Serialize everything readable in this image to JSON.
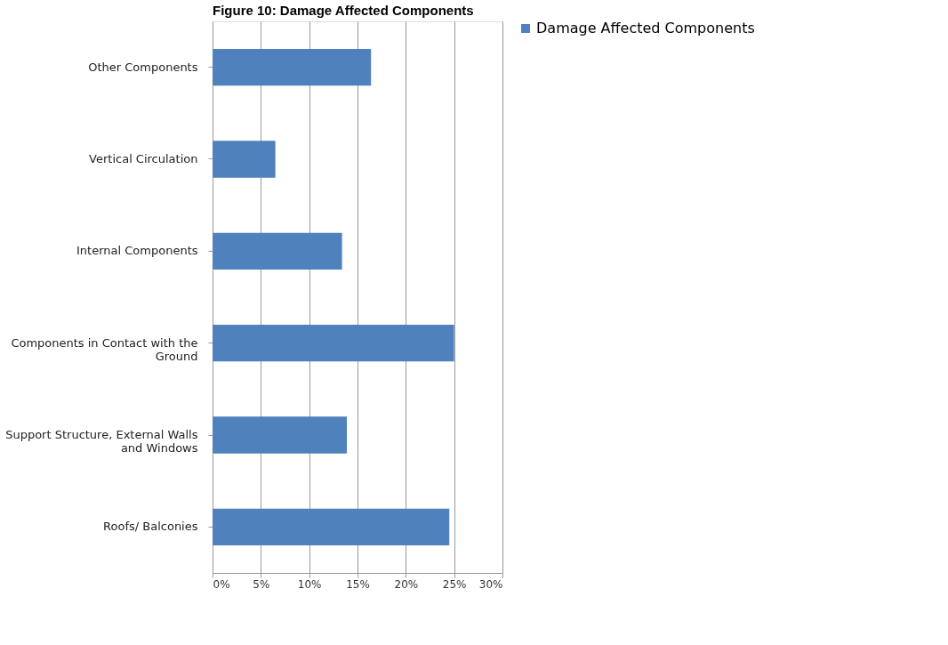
{
  "chart_data": {
    "type": "bar",
    "orientation": "horizontal",
    "title": "Figure 10: Damage Affected Components",
    "categories": [
      "Other Components",
      "Vertical Circulation",
      "Internal Components",
      "Components in Contact with the Ground",
      "Support Structure, External Walls and Windows",
      "Roofs/ Balconies"
    ],
    "series": [
      {
        "name": "Damage Affected Components",
        "color": "#4f81bd",
        "values": [
          16.4,
          6.5,
          13.4,
          25,
          13.9,
          24.5
        ]
      }
    ],
    "xlim": [
      0,
      30
    ],
    "xticks": [
      {
        "value": 0,
        "label": "0%"
      },
      {
        "value": 5,
        "label": "5%"
      },
      {
        "value": 10,
        "label": "10%"
      },
      {
        "value": 15,
        "label": "15%"
      },
      {
        "value": 20,
        "label": "20%"
      },
      {
        "value": 25,
        "label": "25%"
      },
      {
        "value": 30,
        "label": "30%"
      }
    ],
    "grid": "x",
    "legend": "right"
  }
}
